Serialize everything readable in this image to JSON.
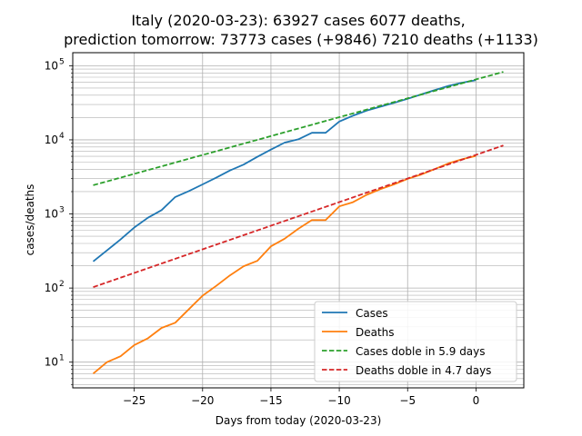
{
  "chart_data": {
    "type": "line",
    "title_line1": "Italy (2020-03-23): 63927 cases 6077 deaths,",
    "title_line2": "prediction tomorrow: 73773 cases (+9846) 7210 deaths (+1133)",
    "xlabel": "Days from today (2020-03-23)",
    "ylabel": "cases/deaths",
    "xlim": [
      -29.5,
      3.5
    ],
    "ylim": [
      4.5,
      150000
    ],
    "yscale": "log",
    "grid": true,
    "legend_position": "lower-right",
    "x_ticks": [
      -25,
      -20,
      -15,
      -10,
      -5,
      0
    ],
    "x_tick_labels": [
      "−25",
      "−20",
      "−15",
      "−10",
      "−5",
      "0"
    ],
    "y_ticks": [
      10,
      100,
      1000,
      10000,
      100000
    ],
    "y_tick_labels": [
      "10",
      "10",
      "10",
      "10",
      "10"
    ],
    "y_tick_exponents": [
      "1",
      "2",
      "3",
      "4",
      "5"
    ],
    "x": [
      -28,
      -27,
      -26,
      -25,
      -24,
      -23,
      -22,
      -21,
      -20,
      -19,
      -18,
      -17,
      -16,
      -15,
      -14,
      -13,
      -12,
      -11,
      -10,
      -9,
      -8,
      -7,
      -6,
      -5,
      -4,
      -3,
      -2,
      -1,
      0
    ],
    "series": [
      {
        "name": "Cases",
        "color": "#1f77b4",
        "style": "solid",
        "values": [
          229,
          322,
          453,
          655,
          888,
          1128,
          1694,
          2036,
          2502,
          3089,
          3858,
          4636,
          5883,
          7375,
          9172,
          10149,
          12462,
          12462,
          17660,
          21157,
          24747,
          27980,
          31506,
          35713,
          41035,
          47021,
          53578,
          59138,
          63927
        ]
      },
      {
        "name": "Deaths",
        "color": "#ff7f0e",
        "style": "solid",
        "values": [
          7,
          10,
          12,
          17,
          21,
          29,
          34,
          52,
          79,
          107,
          148,
          197,
          233,
          366,
          463,
          631,
          827,
          827,
          1266,
          1441,
          1809,
          2158,
          2503,
          2978,
          3405,
          4032,
          4825,
          5476,
          6077
        ]
      },
      {
        "name": "Cases doble in 5.9 days",
        "color": "#2ca02c",
        "style": "dashed",
        "x": [
          -28,
          2
        ],
        "values": [
          2440,
          82700
        ]
      },
      {
        "name": "Deaths doble in 4.7 days",
        "color": "#d62728",
        "style": "dashed",
        "x": [
          -28,
          2
        ],
        "values": [
          103,
          8400
        ]
      }
    ]
  }
}
